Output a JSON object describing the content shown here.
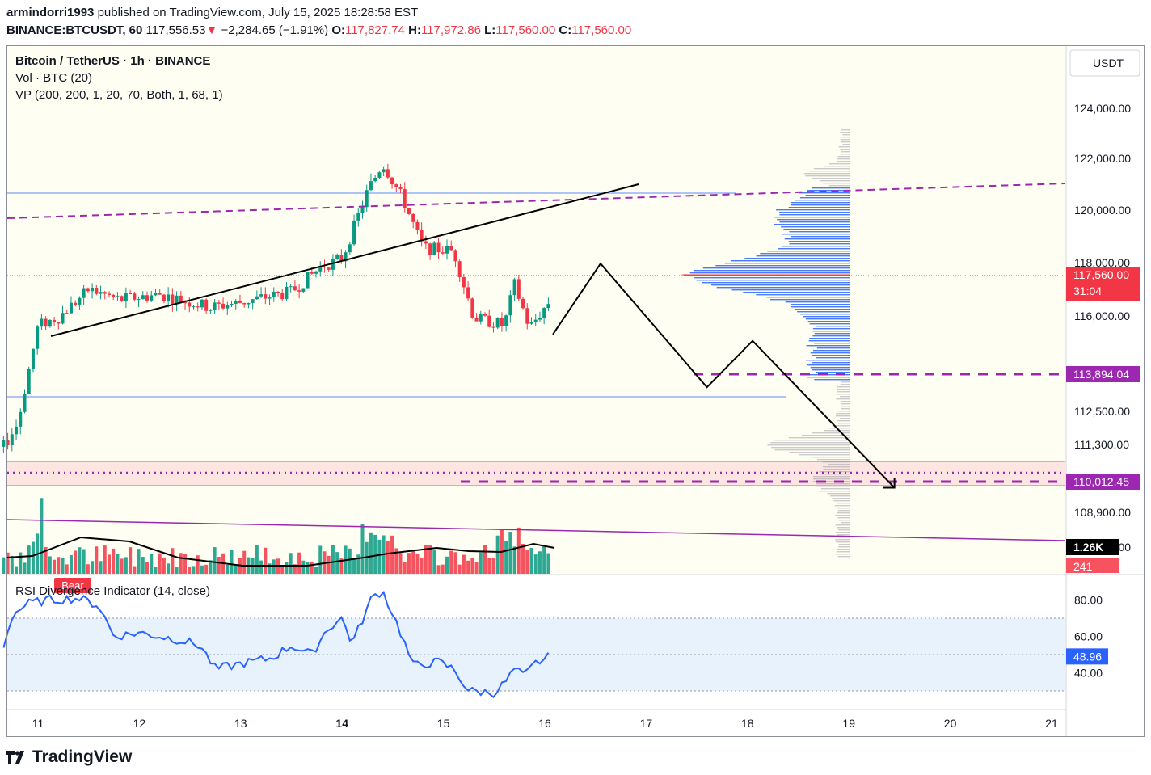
{
  "header": {
    "author": "armindorri1993",
    "published_text": "published on TradingView.com, July 15, 2025 18:28:58 EST",
    "symbol": "BINANCE:BTCUSDT, 60",
    "last": "117,556.53",
    "arrow": "▼",
    "change": "−2,284.65 (−1.91%)",
    "o_label": "O:",
    "o": "117,827.74",
    "h_label": "H:",
    "h": "117,972.86",
    "l_label": "L:",
    "l": "117,560.00",
    "c_label": "C:",
    "c": "117,560.00"
  },
  "legend": {
    "title": "Bitcoin / TetherUS · 1h · BINANCE",
    "vol": "Vol · BTC (20)",
    "vp": "VP (200, 200, 1, 20, 70, Both, 1, 68, 1)",
    "rsi": "RSI Divergence Indicator (14, close)",
    "bear_tag": "Bear"
  },
  "price_axis": {
    "currency": "USDT",
    "ticks": [
      "124,000.00",
      "122,000.00",
      "120,000.00",
      "118,000.00",
      "116,000.00",
      "112,500.00",
      "111,300.00",
      "108,900.00",
      "107,600.00"
    ],
    "badges": [
      {
        "label": "117,560.00",
        "sub": "31:04",
        "color": "#f23645"
      },
      {
        "label": "113,894.04",
        "color": "#9c27b0"
      },
      {
        "label": "110,012.45",
        "color": "#9c27b0"
      },
      {
        "label": "1.26K",
        "color": "#000000"
      },
      {
        "label": "241",
        "color": "#f7525f"
      }
    ]
  },
  "rsi_axis": {
    "ticks": [
      "80.00",
      "60.00",
      "40.00"
    ],
    "badge": "48.96"
  },
  "time_axis": {
    "labels": [
      "11",
      "12",
      "13",
      "14",
      "15",
      "16",
      "17",
      "18",
      "19",
      "20",
      "21"
    ],
    "bold": "14"
  },
  "colors": {
    "up": "#089981",
    "down": "#f23645",
    "vp_up": "#2962ff",
    "vp_gray": "#9598a1",
    "level": "#9c27b0",
    "rsi": "#2962ff",
    "bg": "#fffef2"
  },
  "chart_data": {
    "type": "candlestick",
    "interval": "1h",
    "price_range": [
      107000,
      125000
    ],
    "ohlc_summary": {
      "open": 117827.74,
      "high": 117972.86,
      "low": 117560.0,
      "close": 117560.0
    },
    "path_points": [
      {
        "day": 10.6,
        "price": 111500
      },
      {
        "day": 10.8,
        "price": 112800
      },
      {
        "day": 11.0,
        "price": 116600
      },
      {
        "day": 11.2,
        "price": 116900
      },
      {
        "day": 11.5,
        "price": 118000
      },
      {
        "day": 11.8,
        "price": 117600
      },
      {
        "day": 12.2,
        "price": 117800
      },
      {
        "day": 12.7,
        "price": 117300
      },
      {
        "day": 13.0,
        "price": 117500
      },
      {
        "day": 13.5,
        "price": 117900
      },
      {
        "day": 13.8,
        "price": 118900
      },
      {
        "day": 14.0,
        "price": 119200
      },
      {
        "day": 14.25,
        "price": 121800
      },
      {
        "day": 14.4,
        "price": 122900
      },
      {
        "day": 14.6,
        "price": 121500
      },
      {
        "day": 14.8,
        "price": 119600
      },
      {
        "day": 15.1,
        "price": 119500
      },
      {
        "day": 15.3,
        "price": 116900
      },
      {
        "day": 15.6,
        "price": 116600
      },
      {
        "day": 15.7,
        "price": 118200
      },
      {
        "day": 15.85,
        "price": 116500
      },
      {
        "day": 16.05,
        "price": 117560
      }
    ],
    "levels": [
      113894.04,
      110012.45
    ],
    "projection": [
      {
        "day": 16.08,
        "price": 116250
      },
      {
        "day": 16.55,
        "price": 119000
      },
      {
        "day": 17.6,
        "price": 114200
      },
      {
        "day": 18.05,
        "price": 116000
      },
      {
        "day": 19.45,
        "price": 110300
      }
    ],
    "rsi": {
      "overbought": 70,
      "oversold": 30,
      "mid": 50,
      "last": 48.96
    }
  }
}
